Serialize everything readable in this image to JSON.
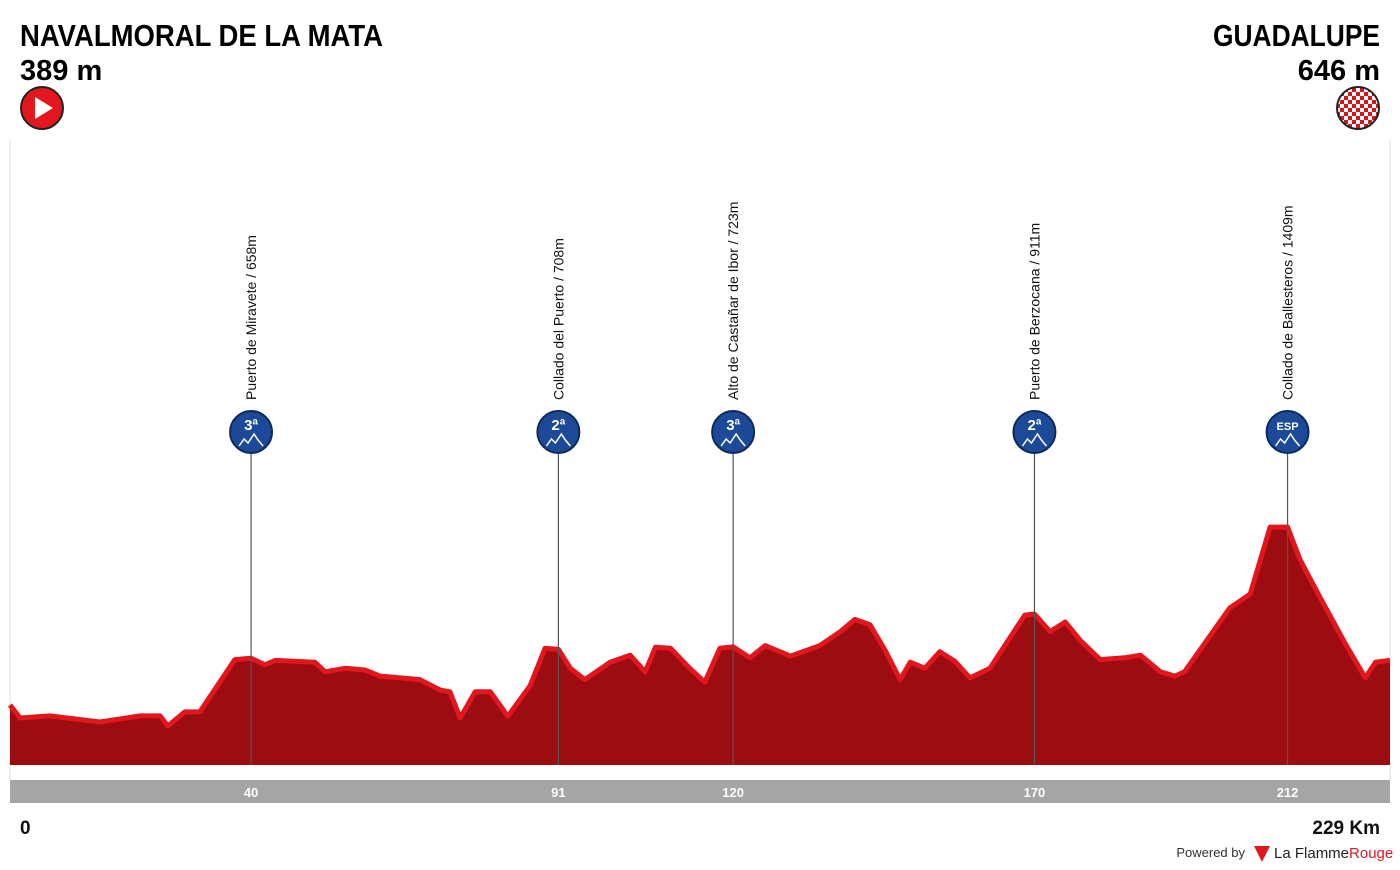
{
  "chart_data": {
    "type": "area",
    "start": {
      "name": "NAVALMORAL DE LA MATA",
      "elevation": "389 m"
    },
    "finish": {
      "name": "GUADALUPE",
      "elevation": "646 m"
    },
    "x": [
      0,
      1.7,
      6.6,
      14.9,
      21.6,
      24.9,
      26.2,
      29,
      31.5,
      37.3,
      40,
      42.3,
      44,
      50.6,
      52.3,
      55.6,
      58.9,
      61.4,
      68,
      71.4,
      73,
      74.7,
      77.2,
      79.7,
      82.6,
      86.3,
      88.8,
      91,
      93,
      95.4,
      99.6,
      102.9,
      105.4,
      107.1,
      109.6,
      112.8,
      115.3,
      117.8,
      120,
      122.8,
      125.3,
      129.5,
      134.4,
      137.8,
      140.2,
      142.7,
      145.2,
      147.7,
      149.4,
      151.8,
      154.3,
      156.8,
      159.3,
      162.6,
      168.4,
      170,
      172.6,
      175.1,
      177.6,
      180.9,
      185,
      187.6,
      190.9,
      193.3,
      194.9,
      202.4,
      205.8,
      209.1,
      212,
      214.1,
      217.4,
      221.6,
      224.9,
      226.6,
      229
    ],
    "values": [
      389,
      315,
      327,
      292,
      327,
      327,
      270,
      350,
      350,
      650,
      658,
      620,
      645,
      635,
      580,
      600,
      590,
      555,
      535,
      475,
      465,
      315,
      465,
      465,
      325,
      500,
      715,
      708,
      600,
      535,
      635,
      675,
      580,
      720,
      715,
      600,
      520,
      715,
      723,
      660,
      730,
      670,
      730,
      810,
      880,
      850,
      705,
      535,
      635,
      600,
      695,
      640,
      545,
      600,
      905,
      911,
      810,
      865,
      760,
      650,
      660,
      675,
      580,
      555,
      580,
      945,
      1025,
      1409,
      1409,
      1220,
      1005,
      740,
      545,
      635,
      646
    ],
    "xlim": [
      0,
      229
    ],
    "xticks": [
      0,
      {
        "value": 229,
        "label": "229 Km"
      }
    ],
    "color": "#9b0d10",
    "edge_color": "#e3161d",
    "climbs": [
      {
        "name": "Puerto de Miravete / 658m",
        "category": "3ª",
        "km": 40
      },
      {
        "name": "Collado del Puerto / 708m",
        "category": "2ª",
        "km": 91
      },
      {
        "name": "Alto de Castañar de Ibor / 723m",
        "category": "3ª",
        "km": 120
      },
      {
        "name": "Puerto de Berzocana / 911m",
        "category": "2ª",
        "km": 170
      },
      {
        "name": "Collado de Ballesteros / 1409m",
        "category": "ESP",
        "km": 212
      }
    ]
  },
  "footer": {
    "powered": "Powered by",
    "brand_a": "La Flamme",
    "brand_b": "Rouge"
  }
}
